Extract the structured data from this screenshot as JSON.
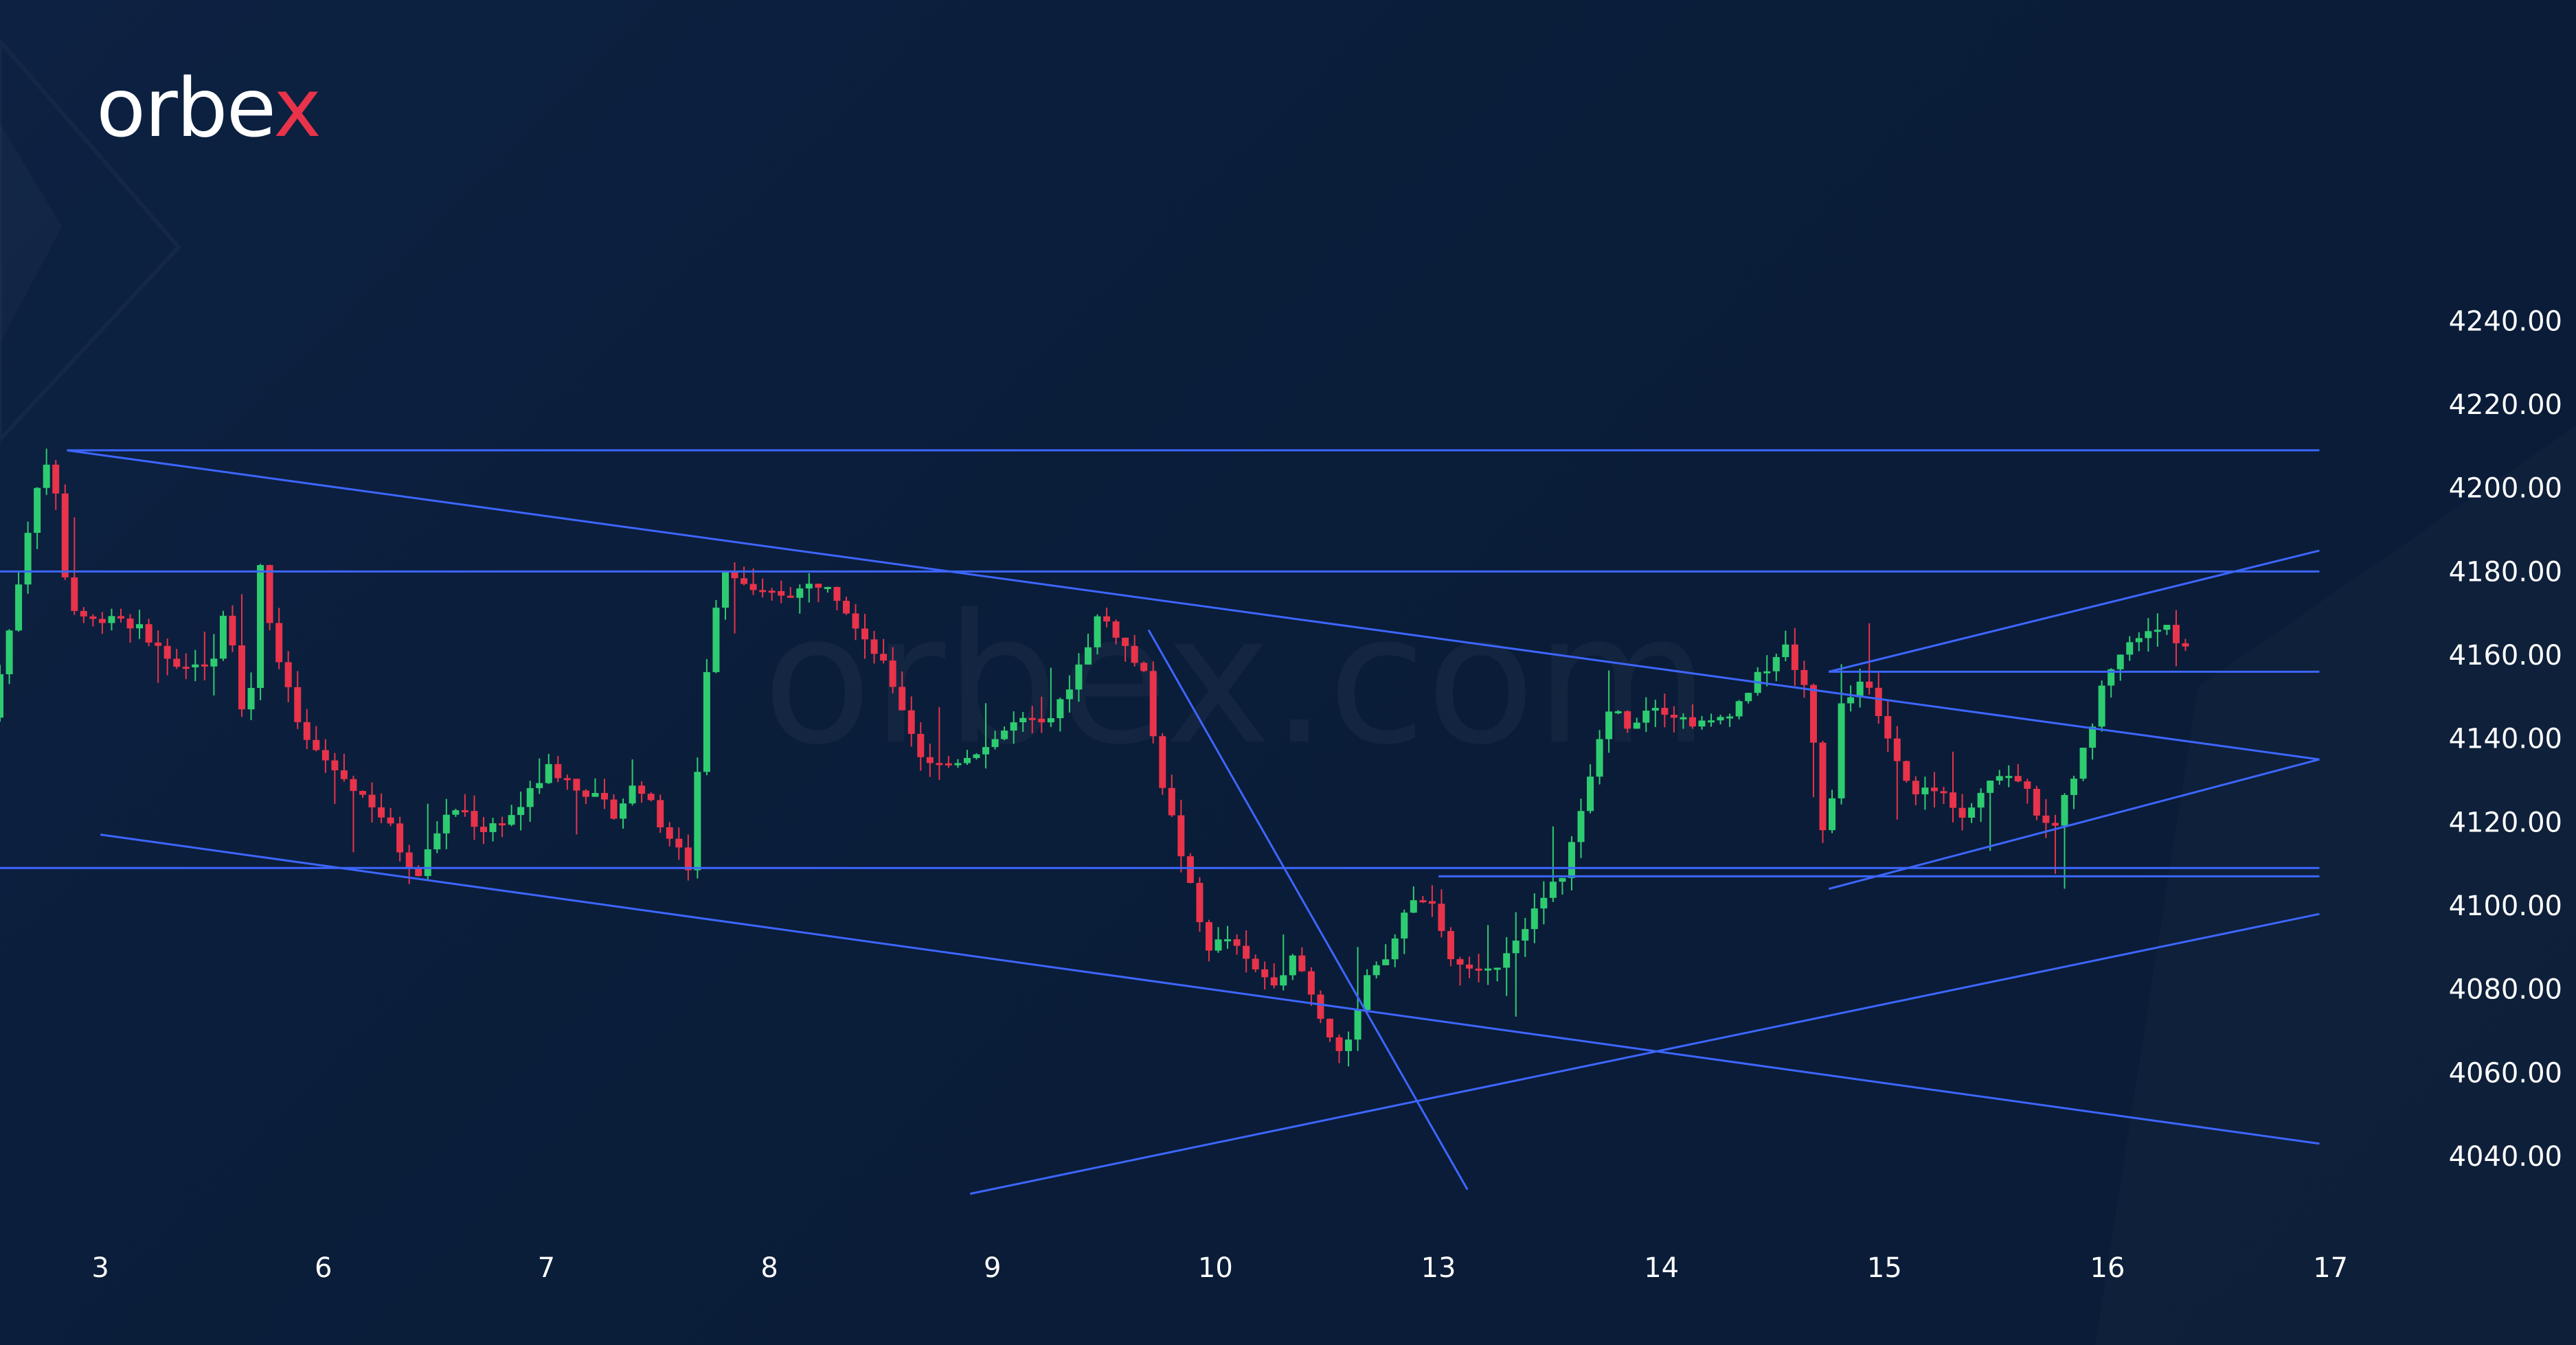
{
  "brand": {
    "logo_text": "orbex",
    "logo_main": "orbe",
    "logo_accent": "x",
    "accent_color": "#e8334a",
    "watermark_text": "orbex.com"
  },
  "colors": {
    "background": "#0b1f3c",
    "up_candle": "#2ecc71",
    "down_candle": "#e8334a",
    "trendline": "#3d66ff",
    "text": "#ffffff"
  },
  "chart_data": {
    "type": "candlestick",
    "title": "",
    "xlabel": "",
    "ylabel": "",
    "ylim": [
      4028,
      4256
    ],
    "xlim": [
      -0.45,
      10.5
    ],
    "y_ticks": [
      "4240.00",
      "4220.00",
      "4200.00",
      "4180.00",
      "4160.00",
      "4140.00",
      "4120.00",
      "4100.00",
      "4080.00",
      "4060.00",
      "4040.00"
    ],
    "y_tick_values": [
      4240,
      4220,
      4200,
      4180,
      4160,
      4140,
      4120,
      4100,
      4080,
      4060,
      4040
    ],
    "x_ticks": [
      "3",
      "6",
      "7",
      "8",
      "9",
      "10",
      "13",
      "14",
      "15",
      "16",
      "17"
    ],
    "x_tick_days": [
      0,
      1,
      2,
      3,
      4,
      5,
      6,
      7,
      8,
      9,
      10
    ],
    "grid": false,
    "legend": "none",
    "anchors": [
      [
        -0.45,
        4145
      ],
      [
        -0.35,
        4170
      ],
      [
        -0.25,
        4200
      ],
      [
        -0.18,
        4208
      ],
      [
        -0.1,
        4172
      ],
      [
        0.0,
        4168
      ],
      [
        0.1,
        4170
      ],
      [
        0.25,
        4165
      ],
      [
        0.4,
        4155
      ],
      [
        0.55,
        4160
      ],
      [
        0.6,
        4172
      ],
      [
        0.65,
        4160
      ],
      [
        0.7,
        4135
      ],
      [
        0.75,
        4185
      ],
      [
        0.82,
        4162
      ],
      [
        0.95,
        4140
      ],
      [
        1.1,
        4132
      ],
      [
        1.25,
        4125
      ],
      [
        1.35,
        4118
      ],
      [
        1.45,
        4105
      ],
      [
        1.55,
        4118
      ],
      [
        1.65,
        4124
      ],
      [
        1.75,
        4118
      ],
      [
        1.9,
        4122
      ],
      [
        2.05,
        4133
      ],
      [
        2.2,
        4128
      ],
      [
        2.35,
        4122
      ],
      [
        2.45,
        4130
      ],
      [
        2.55,
        4120
      ],
      [
        2.68,
        4109
      ],
      [
        2.78,
        4168
      ],
      [
        2.85,
        4182
      ],
      [
        2.98,
        4174
      ],
      [
        3.15,
        4175
      ],
      [
        3.3,
        4178
      ],
      [
        3.45,
        4166
      ],
      [
        3.58,
        4155
      ],
      [
        3.72,
        4136
      ],
      [
        3.82,
        4133
      ],
      [
        4.0,
        4138
      ],
      [
        4.15,
        4144
      ],
      [
        4.3,
        4143
      ],
      [
        4.45,
        4160
      ],
      [
        4.52,
        4170
      ],
      [
        4.6,
        4165
      ],
      [
        4.72,
        4155
      ],
      [
        4.8,
        4130
      ],
      [
        4.9,
        4110
      ],
      [
        5.0,
        4090
      ],
      [
        5.1,
        4092
      ],
      [
        5.2,
        4085
      ],
      [
        5.3,
        4082
      ],
      [
        5.4,
        4088
      ],
      [
        5.5,
        4075
      ],
      [
        5.62,
        4063
      ],
      [
        5.72,
        4082
      ],
      [
        5.82,
        4088
      ],
      [
        5.9,
        4100
      ],
      [
        6.0,
        4103
      ],
      [
        6.08,
        4088
      ],
      [
        6.2,
        4083
      ],
      [
        6.3,
        4086
      ],
      [
        6.42,
        4095
      ],
      [
        6.52,
        4102
      ],
      [
        6.6,
        4108
      ],
      [
        6.7,
        4125
      ],
      [
        6.8,
        4148
      ],
      [
        6.9,
        4143
      ],
      [
        7.0,
        4149
      ],
      [
        7.12,
        4145
      ],
      [
        7.25,
        4143
      ],
      [
        7.38,
        4148
      ],
      [
        7.48,
        4155
      ],
      [
        7.6,
        4162
      ],
      [
        7.7,
        4150
      ],
      [
        7.78,
        4112
      ],
      [
        7.85,
        4148
      ],
      [
        7.95,
        4155
      ],
      [
        8.05,
        4140
      ],
      [
        8.15,
        4128
      ],
      [
        8.3,
        4127
      ],
      [
        8.4,
        4122
      ],
      [
        8.5,
        4130
      ],
      [
        8.62,
        4132
      ],
      [
        8.7,
        4125
      ],
      [
        8.78,
        4117
      ],
      [
        8.88,
        4130
      ],
      [
        8.96,
        4140
      ],
      [
        9.0,
        4150
      ],
      [
        9.08,
        4160
      ],
      [
        9.2,
        4165
      ],
      [
        9.28,
        4168
      ],
      [
        9.36,
        4162
      ]
    ],
    "trendlines": [
      {
        "from": [
          -0.45,
          4180
        ],
        "to": [
          9.95,
          4180
        ]
      },
      {
        "from": [
          -0.45,
          4109
        ],
        "to": [
          9.95,
          4109
        ]
      },
      {
        "from": [
          -0.15,
          4209
        ],
        "to": [
          9.95,
          4209
        ]
      },
      {
        "from": [
          -0.15,
          4209
        ],
        "to": [
          9.95,
          4135
        ]
      },
      {
        "from": [
          0.0,
          4117
        ],
        "to": [
          9.95,
          4043
        ]
      },
      {
        "from": [
          3.9,
          4031
        ],
        "to": [
          9.95,
          4098
        ]
      },
      {
        "from": [
          7.75,
          4104
        ],
        "to": [
          9.95,
          4135
        ]
      },
      {
        "from": [
          7.75,
          4156
        ],
        "to": [
          9.95,
          4185
        ]
      },
      {
        "from": [
          7.75,
          4156
        ],
        "to": [
          9.95,
          4156
        ]
      },
      {
        "from": [
          6.0,
          4107
        ],
        "to": [
          9.95,
          4107
        ]
      },
      {
        "from": [
          4.7,
          4166
        ],
        "to": [
          6.13,
          4032
        ]
      }
    ]
  }
}
